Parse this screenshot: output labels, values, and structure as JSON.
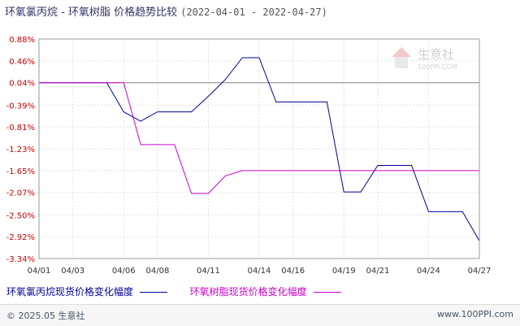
{
  "title": "环氧氯丙烷 - 环氧树脂 价格趋势比较",
  "date_range": "(2022-04-01 - 2022-04-27)",
  "watermark": {
    "name": "生意社",
    "url": "100PPI.COM"
  },
  "footer": {
    "left": "© 2025.05 生意社",
    "right": "www.100PPI.com"
  },
  "chart_data": {
    "type": "line",
    "ylim": [
      -3.34,
      0.88
    ],
    "y_ticks": [
      "0.88%",
      "0.46%",
      "0.04%",
      "-0.39%",
      "-0.81%",
      "-1.23%",
      "-1.65%",
      "-2.07%",
      "-2.50%",
      "-2.92%",
      "-3.34%"
    ],
    "x_ticks": [
      "04/01",
      "04/03",
      "04/06",
      "04/08",
      "04/11",
      "04/14",
      "04/16",
      "04/19",
      "04/21",
      "04/24",
      "04/27"
    ],
    "baseline": 0.04,
    "grid": true,
    "legend_position": "bottom-left",
    "series": [
      {
        "name": "环氧氯丙烷现货价格变化幅度",
        "color": "#000099",
        "points": [
          [
            "04/01",
            0.04
          ],
          [
            "04/02",
            0.04
          ],
          [
            "04/03",
            0.04
          ],
          [
            "04/04",
            0.04
          ],
          [
            "04/05",
            0.04
          ],
          [
            "04/06",
            -0.52
          ],
          [
            "04/07",
            -0.7
          ],
          [
            "04/08",
            -0.52
          ],
          [
            "04/09",
            -0.52
          ],
          [
            "04/10",
            -0.52
          ],
          [
            "04/11",
            -0.22
          ],
          [
            "04/12",
            0.1
          ],
          [
            "04/13",
            0.52
          ],
          [
            "04/14",
            0.52
          ],
          [
            "04/15",
            -0.33
          ],
          [
            "04/16",
            -0.33
          ],
          [
            "04/17",
            -0.33
          ],
          [
            "04/18",
            -0.33
          ],
          [
            "04/19",
            -2.06
          ],
          [
            "04/20",
            -2.06
          ],
          [
            "04/21",
            -1.55
          ],
          [
            "04/22",
            -1.55
          ],
          [
            "04/23",
            -1.55
          ],
          [
            "04/24",
            -2.44
          ],
          [
            "04/25",
            -2.44
          ],
          [
            "04/26",
            -2.44
          ],
          [
            "04/27",
            -3.0
          ]
        ]
      },
      {
        "name": "环氧树脂现货价格变化幅度",
        "color": "#cc00cc",
        "points": [
          [
            "04/01",
            0.04
          ],
          [
            "04/02",
            0.04
          ],
          [
            "04/03",
            0.04
          ],
          [
            "04/04",
            0.04
          ],
          [
            "04/05",
            0.04
          ],
          [
            "04/06",
            0.04
          ],
          [
            "04/07",
            -1.15
          ],
          [
            "04/08",
            -1.15
          ],
          [
            "04/09",
            -1.15
          ],
          [
            "04/10",
            -2.09
          ],
          [
            "04/11",
            -2.09
          ],
          [
            "04/12",
            -1.75
          ],
          [
            "04/13",
            -1.65
          ],
          [
            "04/14",
            -1.65
          ],
          [
            "04/15",
            -1.65
          ],
          [
            "04/16",
            -1.65
          ],
          [
            "04/17",
            -1.65
          ],
          [
            "04/18",
            -1.65
          ],
          [
            "04/19",
            -1.65
          ],
          [
            "04/20",
            -1.65
          ],
          [
            "04/21",
            -1.65
          ],
          [
            "04/22",
            -1.65
          ],
          [
            "04/23",
            -1.65
          ],
          [
            "04/24",
            -1.65
          ],
          [
            "04/25",
            -1.65
          ],
          [
            "04/26",
            -1.65
          ],
          [
            "04/27",
            -1.65
          ]
        ]
      }
    ]
  }
}
